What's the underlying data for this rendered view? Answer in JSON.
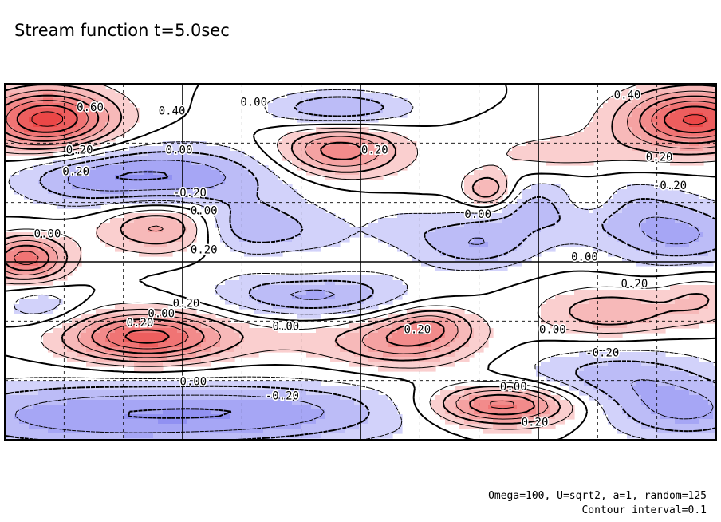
{
  "title": "Stream function t=5.0sec",
  "footnote_params": "Omega=100, U=sqrt2, a=1, random=125",
  "footnote_interval": "Contour interval=0.1",
  "colors": {
    "positive": "#e83030",
    "negative": "#3a3ae8",
    "line": "#000000",
    "frame": "#000000"
  },
  "chart_data": {
    "type": "heatmap",
    "title": "Stream function t=5.0sec",
    "subtitle": "",
    "xlabel": "",
    "ylabel": "",
    "contour_interval": 0.1,
    "grid": true,
    "grid_divisions": {
      "x": 12,
      "y": 6
    },
    "major_grid_lines": {
      "x": 3,
      "y": 1
    },
    "blobs": [
      {
        "x": 0.06,
        "y": 0.9,
        "sx": 0.065,
        "sy": 0.06,
        "a": 0.75
      },
      {
        "x": 0.22,
        "y": 0.74,
        "sx": 0.12,
        "sy": 0.06,
        "a": -0.4
      },
      {
        "x": 0.1,
        "y": 0.73,
        "sx": 0.06,
        "sy": 0.05,
        "a": -0.1
      },
      {
        "x": 0.97,
        "y": 0.9,
        "sx": 0.07,
        "sy": 0.06,
        "a": 0.72
      },
      {
        "x": 0.78,
        "y": 0.8,
        "sx": 0.09,
        "sy": 0.05,
        "a": 0.15
      },
      {
        "x": 0.47,
        "y": 0.93,
        "sx": 0.07,
        "sy": 0.035,
        "a": -0.32
      },
      {
        "x": 0.47,
        "y": 0.81,
        "sx": 0.06,
        "sy": 0.05,
        "a": 0.48
      },
      {
        "x": 0.8,
        "y": 0.66,
        "sx": 0.1,
        "sy": 0.06,
        "a": -0.3
      },
      {
        "x": 0.95,
        "y": 0.57,
        "sx": 0.07,
        "sy": 0.06,
        "a": -0.3
      },
      {
        "x": 0.66,
        "y": 0.55,
        "sx": 0.06,
        "sy": 0.05,
        "a": -0.28
      },
      {
        "x": 0.33,
        "y": 0.6,
        "sx": 0.05,
        "sy": 0.05,
        "a": -0.25
      },
      {
        "x": 0.03,
        "y": 0.51,
        "sx": 0.04,
        "sy": 0.045,
        "a": 0.55
      },
      {
        "x": 0.22,
        "y": 0.6,
        "sx": 0.06,
        "sy": 0.05,
        "a": 0.35
      },
      {
        "x": 0.42,
        "y": 0.58,
        "sx": 0.06,
        "sy": 0.06,
        "a": -0.15
      },
      {
        "x": 0.56,
        "y": 0.6,
        "sx": 0.04,
        "sy": 0.04,
        "a": -0.1
      },
      {
        "x": 0.42,
        "y": 0.48,
        "sx": 0.05,
        "sy": 0.04,
        "a": 0.12
      },
      {
        "x": 0.6,
        "y": 0.33,
        "sx": 0.04,
        "sy": 0.035,
        "a": 0.22
      },
      {
        "x": 0.68,
        "y": 0.7,
        "sx": 0.025,
        "sy": 0.035,
        "a": 0.35
      },
      {
        "x": 0.82,
        "y": 0.67,
        "sx": 0.035,
        "sy": 0.04,
        "a": 0.25
      },
      {
        "x": 0.43,
        "y": 0.41,
        "sx": 0.09,
        "sy": 0.05,
        "a": -0.35
      },
      {
        "x": 0.4,
        "y": 0.3,
        "sx": 0.06,
        "sy": 0.05,
        "a": 0.1
      },
      {
        "x": 0.2,
        "y": 0.29,
        "sx": 0.08,
        "sy": 0.05,
        "a": 0.65
      },
      {
        "x": 0.05,
        "y": 0.38,
        "sx": 0.04,
        "sy": 0.04,
        "a": -0.18
      },
      {
        "x": 0.12,
        "y": 0.07,
        "sx": 0.18,
        "sy": 0.07,
        "a": -0.35
      },
      {
        "x": 0.4,
        "y": 0.08,
        "sx": 0.14,
        "sy": 0.06,
        "a": -0.25
      },
      {
        "x": 0.56,
        "y": 0.28,
        "sx": 0.07,
        "sy": 0.05,
        "a": 0.4
      },
      {
        "x": 0.7,
        "y": 0.1,
        "sx": 0.07,
        "sy": 0.04,
        "a": 0.58
      },
      {
        "x": 0.86,
        "y": 0.18,
        "sx": 0.1,
        "sy": 0.06,
        "a": -0.25
      },
      {
        "x": 0.85,
        "y": 0.36,
        "sx": 0.07,
        "sy": 0.05,
        "a": 0.28
      },
      {
        "x": 0.98,
        "y": 0.4,
        "sx": 0.04,
        "sy": 0.05,
        "a": 0.18
      },
      {
        "x": 0.96,
        "y": 0.08,
        "sx": 0.08,
        "sy": 0.06,
        "a": -0.3
      },
      {
        "x": 0.63,
        "y": 0.7,
        "sx": 0.05,
        "sy": 0.05,
        "a": 0.05
      }
    ],
    "contour_labels": [
      {
        "text": "0.60",
        "x": 0.12,
        "y": 0.935
      },
      {
        "text": "0.40",
        "x": 0.235,
        "y": 0.925
      },
      {
        "text": "0.00",
        "x": 0.35,
        "y": 0.95
      },
      {
        "text": "0.40",
        "x": 0.875,
        "y": 0.97
      },
      {
        "text": "0.20",
        "x": 0.105,
        "y": 0.815
      },
      {
        "text": "0.20",
        "x": 0.1,
        "y": 0.755
      },
      {
        "text": "0.00",
        "x": 0.245,
        "y": 0.815
      },
      {
        "text": "0.20",
        "x": 0.52,
        "y": 0.815
      },
      {
        "text": "0.20",
        "x": 0.92,
        "y": 0.795
      },
      {
        "text": "-0.20",
        "x": 0.26,
        "y": 0.695
      },
      {
        "text": "-0.20",
        "x": 0.935,
        "y": 0.715
      },
      {
        "text": "0.00",
        "x": 0.28,
        "y": 0.645
      },
      {
        "text": "0.00",
        "x": 0.665,
        "y": 0.635
      },
      {
        "text": "0.00",
        "x": 0.06,
        "y": 0.58
      },
      {
        "text": "0.20",
        "x": 0.28,
        "y": 0.535
      },
      {
        "text": "0.00",
        "x": 0.815,
        "y": 0.515
      },
      {
        "text": "0.20",
        "x": 0.885,
        "y": 0.44
      },
      {
        "text": "0.20",
        "x": 0.255,
        "y": 0.385
      },
      {
        "text": "0.00",
        "x": 0.22,
        "y": 0.355
      },
      {
        "text": "0.20",
        "x": 0.19,
        "y": 0.33
      },
      {
        "text": "0.00",
        "x": 0.395,
        "y": 0.32
      },
      {
        "text": "0.20",
        "x": 0.58,
        "y": 0.31
      },
      {
        "text": "0.00",
        "x": 0.77,
        "y": 0.31
      },
      {
        "text": "-0.20",
        "x": 0.84,
        "y": 0.245
      },
      {
        "text": "0.00",
        "x": 0.265,
        "y": 0.165
      },
      {
        "text": "-0.20",
        "x": 0.39,
        "y": 0.125
      },
      {
        "text": "0.00",
        "x": 0.715,
        "y": 0.15
      },
      {
        "text": "0.20",
        "x": 0.745,
        "y": 0.05
      }
    ]
  }
}
